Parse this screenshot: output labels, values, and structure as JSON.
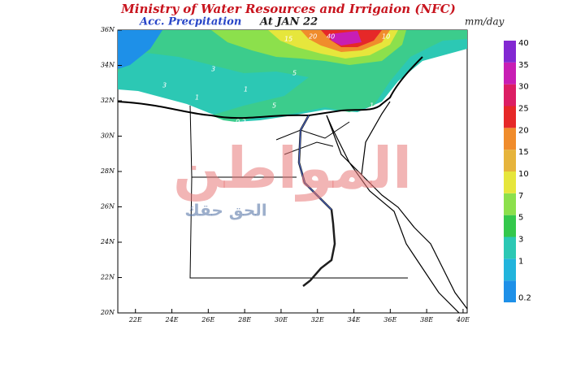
{
  "header": {
    "title": "Ministry of Water Resources and Irrigaion (NFC)",
    "subtitle": "Acc. Precpitation",
    "valid": "At  JAN 22",
    "units": "mm/day"
  },
  "map": {
    "xticks": [
      {
        "value": 22,
        "label": "22E"
      },
      {
        "value": 24,
        "label": "24E"
      },
      {
        "value": 26,
        "label": "26E"
      },
      {
        "value": 28,
        "label": "28E"
      },
      {
        "value": 30,
        "label": "30E"
      },
      {
        "value": 32,
        "label": "32E"
      },
      {
        "value": 34,
        "label": "34E"
      },
      {
        "value": 36,
        "label": "36E"
      },
      {
        "value": 38,
        "label": "38E"
      },
      {
        "value": 40,
        "label": "40E"
      }
    ],
    "yticks": [
      {
        "value": 20,
        "label": "20N"
      },
      {
        "value": 22,
        "label": "22N"
      },
      {
        "value": 24,
        "label": "24N"
      },
      {
        "value": 26,
        "label": "26N"
      },
      {
        "value": 28,
        "label": "28N"
      },
      {
        "value": 30,
        "label": "30N"
      },
      {
        "value": 32,
        "label": "32N"
      },
      {
        "value": 34,
        "label": "34N"
      },
      {
        "value": 36,
        "label": "36N"
      }
    ],
    "contour_labels": [
      "1",
      "3",
      "5",
      "10",
      "15",
      "20",
      "40",
      "3",
      "1",
      "0.2",
      "5",
      "1"
    ]
  },
  "colorbar": {
    "levels": [
      0.2,
      1,
      3,
      5,
      7,
      10,
      15,
      20,
      25,
      30,
      35,
      40
    ],
    "colors": [
      "#1e90e8",
      "#22b4dc",
      "#2cc8b4",
      "#34c84c",
      "#8ce04c",
      "#e6e63c",
      "#e6b43c",
      "#f08c2c",
      "#e62828",
      "#dc1e64",
      "#c81eb4",
      "#8228d2"
    ]
  },
  "watermark": {
    "brand": "المواطن",
    "slogan": "الحق حقك"
  }
}
